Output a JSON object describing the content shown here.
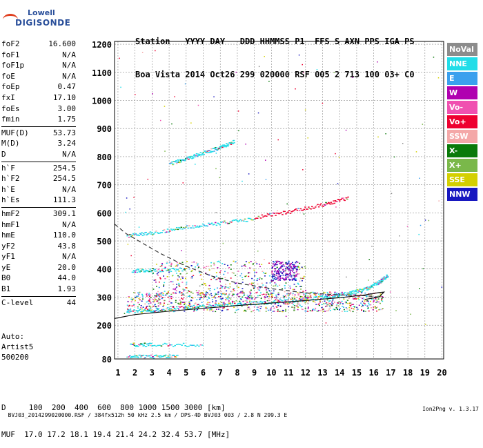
{
  "logo": {
    "line1": "Lowell",
    "line2": "DIGISONDE"
  },
  "header": {
    "line1": "Station   YYYY DAY   DDD HHMMSS P1  FFS S AXN PPS IGA PS",
    "line2": "Boa Vista 2014 Oct26 299 020000 RSF 005 2 713 100 03+ C0"
  },
  "params": [
    [
      [
        "foF2",
        "16.600"
      ],
      [
        "foF1",
        "N/A"
      ],
      [
        "foF1p",
        "N/A"
      ],
      [
        "foE",
        "N/A"
      ],
      [
        "foEp",
        "0.47"
      ],
      [
        "fxI",
        "17.10"
      ],
      [
        "foEs",
        "3.00"
      ],
      [
        "fmin",
        "1.75"
      ]
    ],
    [
      [
        "MUF(D)",
        "53.73"
      ],
      [
        "M(D)",
        "3.24"
      ],
      [
        "D",
        "N/A"
      ]
    ],
    [
      [
        "h`F",
        "254.5"
      ],
      [
        "h`F2",
        "254.5"
      ],
      [
        "h`E",
        "N/A"
      ],
      [
        "h`Es",
        "111.3"
      ]
    ],
    [
      [
        "hmF2",
        "309.1"
      ],
      [
        "hmF1",
        "N/A"
      ],
      [
        "hmE",
        "110.0"
      ],
      [
        "yF2",
        "43.8"
      ],
      [
        "yF1",
        "N/A"
      ],
      [
        "yE",
        "20.0"
      ],
      [
        "B0",
        "44.0"
      ],
      [
        "B1",
        "1.93"
      ]
    ],
    [
      [
        "C-level",
        "44"
      ]
    ]
  ],
  "auto": {
    "line1": "Auto:",
    "line2": "Artist5",
    "line3": "500200"
  },
  "legend": [
    {
      "label": "NoVal",
      "color": "#8c8c8c"
    },
    {
      "label": "NNE",
      "color": "#22dde8"
    },
    {
      "label": "E",
      "color": "#3aa0ee"
    },
    {
      "label": "W",
      "color": "#b000b0"
    },
    {
      "label": "Vo-",
      "color": "#f050b0"
    },
    {
      "label": "Vo+",
      "color": "#ee0030"
    },
    {
      "label": "SSW",
      "color": "#f4a8a8"
    },
    {
      "label": "X-",
      "color": "#0a7a0a"
    },
    {
      "label": "X+",
      "color": "#7ab84a"
    },
    {
      "label": "SSE",
      "color": "#d4d000"
    },
    {
      "label": "NNW",
      "color": "#1818c0"
    }
  ],
  "muf_row": {
    "d_line": "D     100  200  400  600  800 1000 1500 3000 [km]",
    "muf_line": "MUF  17.0 17.2 18.1 19.4 21.4 24.2 32.4 53.7 [MHz]"
  },
  "footer": {
    "left": "BVJ03_2014299020000.RSF / 384fx512h 50 kHz 2.5 km / DPS-4D BVJ03 003 / 2.8 N 299.3 E",
    "right": "Ion2Png v. 1.3.17"
  },
  "chart_data": {
    "type": "scatter",
    "x_ticks": [
      "1",
      "2",
      "3",
      "4",
      "5",
      "6",
      "7",
      "8",
      "9",
      "10",
      "11",
      "12",
      "13",
      "14",
      "15",
      "16",
      "17",
      "18",
      "19",
      "20"
    ],
    "y_ticks": [
      "80",
      "200",
      "300",
      "400",
      "500",
      "600",
      "700",
      "800",
      "900",
      "1000",
      "1100",
      "1200"
    ],
    "xlim": [
      0.8,
      20.1
    ],
    "ylim": [
      80,
      1210
    ],
    "grid": true,
    "traces": [
      {
        "color": "#22dde8",
        "points": [
          [
            4.0,
            775
          ],
          [
            5.0,
            795
          ],
          [
            6.0,
            815
          ],
          [
            7.0,
            835
          ],
          [
            7.8,
            855
          ]
        ]
      },
      {
        "color": "#22dde8",
        "points": [
          [
            1.5,
            520
          ],
          [
            3.0,
            530
          ],
          [
            5.0,
            550
          ],
          [
            7.0,
            565
          ],
          [
            9.0,
            580
          ]
        ]
      },
      {
        "color": "#ee0030",
        "points": [
          [
            9.0,
            585
          ],
          [
            11.0,
            605
          ],
          [
            13.0,
            630
          ],
          [
            14.5,
            655
          ]
        ]
      },
      {
        "color": "#22dde8",
        "points": [
          [
            1.5,
            250
          ],
          [
            3.0,
            255
          ],
          [
            5.0,
            265
          ],
          [
            7.0,
            272
          ],
          [
            9.0,
            280
          ],
          [
            11.0,
            288
          ],
          [
            13.0,
            300
          ],
          [
            14.5,
            315
          ],
          [
            15.5,
            330
          ],
          [
            16.3,
            355
          ],
          [
            16.8,
            380
          ]
        ]
      },
      {
        "color": "#22dde8",
        "points": [
          [
            1.5,
            90
          ],
          [
            3.0,
            90
          ],
          [
            4.5,
            92
          ]
        ]
      },
      {
        "color": "#22dde8",
        "points": [
          [
            1.7,
            132
          ],
          [
            3.0,
            132
          ],
          [
            6.0,
            132
          ]
        ]
      },
      {
        "color": "#22dde8",
        "points": [
          [
            1.8,
            395
          ],
          [
            3.0,
            398
          ],
          [
            5.0,
            400
          ]
        ]
      }
    ],
    "curves": [
      {
        "style": "solid",
        "points": [
          [
            0.8,
            224
          ],
          [
            2.0,
            238
          ],
          [
            4.0,
            250
          ],
          [
            6.0,
            260
          ],
          [
            8.0,
            270
          ],
          [
            10.0,
            279
          ],
          [
            12.0,
            288
          ],
          [
            14.0,
            298
          ],
          [
            15.5,
            308
          ],
          [
            16.3,
            316
          ],
          [
            16.6,
            318
          ],
          [
            16.3,
            300
          ],
          [
            15.5,
            292
          ]
        ]
      },
      {
        "style": "dashed",
        "points": [
          [
            0.8,
            560
          ],
          [
            1.5,
            525
          ],
          [
            2.5,
            490
          ],
          [
            3.5,
            455
          ],
          [
            5.0,
            410
          ],
          [
            6.5,
            375
          ],
          [
            8.0,
            350
          ],
          [
            10.0,
            330
          ],
          [
            12.0,
            315
          ],
          [
            14.0,
            308
          ],
          [
            15.5,
            305
          ],
          [
            16.3,
            300
          ],
          [
            16.6,
            298
          ]
        ]
      }
    ]
  }
}
